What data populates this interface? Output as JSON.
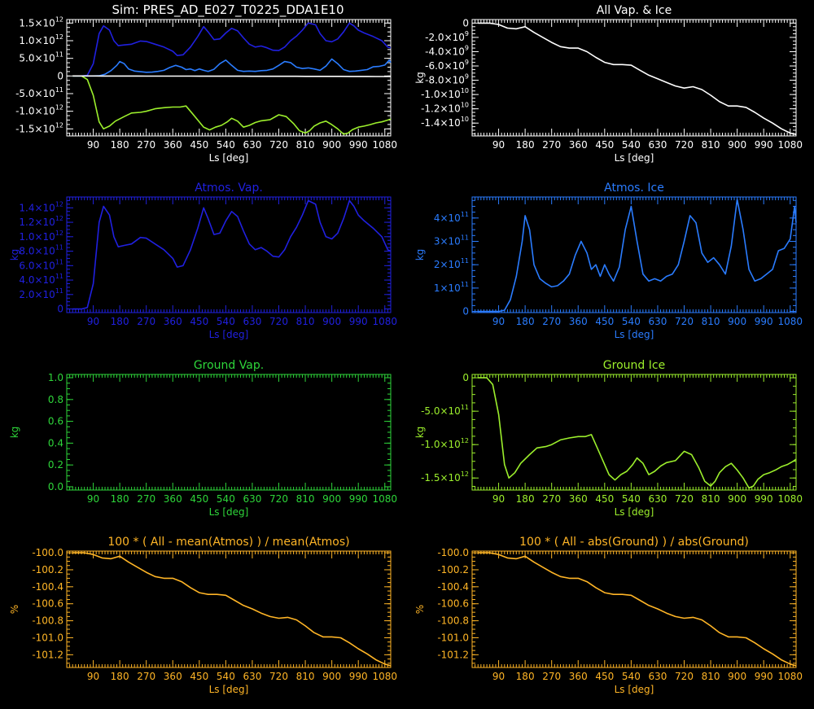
{
  "figure_title": "Sim: PRES_AD_E027_T0225_DDA1E10",
  "chart_data": [
    {
      "id": "combined",
      "type": "line",
      "title": "",
      "xlabel": "Ls [deg]",
      "ylabel": "",
      "axis_color": "#ffffff",
      "xlim": [
        0,
        1100
      ],
      "ylim": [
        -1700000000000.0,
        1600000000000.0
      ],
      "xticks": [
        90,
        180,
        270,
        360,
        450,
        540,
        630,
        720,
        810,
        900,
        990,
        1080
      ],
      "yticks": [
        {
          "v": 1500000000000.0,
          "m": "1.5×10",
          "e": "12"
        },
        {
          "v": 1000000000000.0,
          "m": "1.0×10",
          "e": "12"
        },
        {
          "v": 500000000000.0,
          "m": "5.0×10",
          "e": "11"
        },
        {
          "v": 0,
          "m": "0",
          "e": ""
        },
        {
          "v": -500000000000.0,
          "m": "-5.0×10",
          "e": "11"
        },
        {
          "v": -1000000000000.0,
          "m": "-1.0×10",
          "e": "12"
        },
        {
          "v": -1500000000000.0,
          "m": "-1.5×10",
          "e": "12"
        }
      ],
      "series": [
        {
          "ref": "atmos_vap",
          "color": "#2020e0"
        },
        {
          "ref": "atmos_ice",
          "color": "#2a7cff"
        },
        {
          "ref": "ground_ice",
          "color": "#9cef2c"
        },
        {
          "ref": "all",
          "color": "#ffffff"
        }
      ]
    },
    {
      "id": "all",
      "type": "line",
      "title": "All Vap. & Ice",
      "xlabel": "Ls [deg]",
      "ylabel": "kg",
      "axis_color": "#ffffff",
      "color": "#ffffff",
      "xlim": [
        0,
        1100
      ],
      "ylim": [
        -15800000000.0,
        500000000.0
      ],
      "xticks": [
        90,
        180,
        270,
        360,
        450,
        540,
        630,
        720,
        810,
        900,
        990,
        1080
      ],
      "yticks": [
        {
          "v": 0,
          "m": "0",
          "e": ""
        },
        {
          "v": -2000000000.0,
          "m": "-2.0×10",
          "e": "9"
        },
        {
          "v": -4000000000.0,
          "m": "-4.0×10",
          "e": "9"
        },
        {
          "v": -6000000000.0,
          "m": "-6.0×10",
          "e": "9"
        },
        {
          "v": -8000000000.0,
          "m": "-8.0×10",
          "e": "9"
        },
        {
          "v": -10000000000.0,
          "m": "-1.0×10",
          "e": "10"
        },
        {
          "v": -12000000000.0,
          "m": "-1.2×10",
          "e": "10"
        },
        {
          "v": -14000000000.0,
          "m": "-1.4×10",
          "e": "10"
        }
      ],
      "x": [
        20,
        60,
        90,
        120,
        150,
        180,
        210,
        240,
        270,
        300,
        330,
        360,
        390,
        420,
        450,
        480,
        510,
        540,
        570,
        600,
        630,
        660,
        690,
        720,
        750,
        780,
        810,
        840,
        870,
        900,
        930,
        960,
        990,
        1020,
        1050,
        1080,
        1100
      ],
      "y": [
        0,
        0,
        -200000000.0,
        -700000000.0,
        -800000000.0,
        -500000000.0,
        -1300000000.0,
        -2000000000.0,
        -2700000000.0,
        -3300000000.0,
        -3500000000.0,
        -3500000000.0,
        -4000000000.0,
        -4800000000.0,
        -5500000000.0,
        -5800000000.0,
        -5800000000.0,
        -5900000000.0,
        -6600000000.0,
        -7300000000.0,
        -7800000000.0,
        -8300000000.0,
        -8800000000.0,
        -9100000000.0,
        -8900000000.0,
        -9300000000.0,
        -10100000000.0,
        -11000000000.0,
        -11600000000.0,
        -11600000000.0,
        -11800000000.0,
        -12500000000.0,
        -13300000000.0,
        -14000000000.0,
        -14800000000.0,
        -15400000000.0,
        -15600000000.0
      ]
    },
    {
      "id": "atmos_vap",
      "type": "line",
      "title": "Atmos. Vap.",
      "xlabel": "Ls [deg]",
      "ylabel": "kg",
      "axis_color": "#2020e0",
      "color": "#2020e0",
      "xlim": [
        0,
        1100
      ],
      "ylim": [
        -50000000000.0,
        1550000000000.0
      ],
      "xticks": [
        90,
        180,
        270,
        360,
        450,
        540,
        630,
        720,
        810,
        900,
        990,
        1080
      ],
      "yticks": [
        {
          "v": 0,
          "m": "0",
          "e": ""
        },
        {
          "v": 200000000000.0,
          "m": "2.0×10",
          "e": "11"
        },
        {
          "v": 400000000000.0,
          "m": "4.0×10",
          "e": "11"
        },
        {
          "v": 600000000000.0,
          "m": "6.0×10",
          "e": "11"
        },
        {
          "v": 800000000000.0,
          "m": "8.0×10",
          "e": "11"
        },
        {
          "v": 1000000000000.0,
          "m": "1.0×10",
          "e": "12"
        },
        {
          "v": 1200000000000.0,
          "m": "1.2×10",
          "e": "12"
        },
        {
          "v": 1400000000000.0,
          "m": "1.4×10",
          "e": "12"
        }
      ],
      "x": [
        20,
        50,
        70,
        90,
        110,
        125,
        145,
        160,
        175,
        195,
        220,
        250,
        270,
        300,
        330,
        360,
        375,
        395,
        420,
        445,
        465,
        480,
        500,
        520,
        540,
        560,
        580,
        600,
        620,
        640,
        660,
        680,
        700,
        720,
        740,
        760,
        780,
        800,
        820,
        845,
        860,
        880,
        900,
        920,
        940,
        960,
        975,
        990,
        1010,
        1040,
        1070,
        1090,
        1100
      ],
      "y": [
        0,
        0,
        20000000000.0,
        350000000000.0,
        1200000000000.0,
        1420000000000.0,
        1300000000000.0,
        1000000000000.0,
        860000000000.0,
        880000000000.0,
        900000000000.0,
        990000000000.0,
        980000000000.0,
        900000000000.0,
        820000000000.0,
        700000000000.0,
        580000000000.0,
        600000000000.0,
        820000000000.0,
        1120000000000.0,
        1400000000000.0,
        1250000000000.0,
        1030000000000.0,
        1050000000000.0,
        1220000000000.0,
        1350000000000.0,
        1280000000000.0,
        1080000000000.0,
        900000000000.0,
        820000000000.0,
        850000000000.0,
        800000000000.0,
        730000000000.0,
        720000000000.0,
        820000000000.0,
        1000000000000.0,
        1130000000000.0,
        1300000000000.0,
        1500000000000.0,
        1450000000000.0,
        1200000000000.0,
        1000000000000.0,
        970000000000.0,
        1050000000000.0,
        1250000000000.0,
        1500000000000.0,
        1420000000000.0,
        1300000000000.0,
        1220000000000.0,
        1120000000000.0,
        1000000000000.0,
        820000000000.0,
        800000000000.0
      ]
    },
    {
      "id": "atmos_ice",
      "type": "line",
      "title": "Atmos. Ice",
      "xlabel": "Ls [deg]",
      "ylabel": "kg",
      "axis_color": "#2a7cff",
      "color": "#2a7cff",
      "xlim": [
        0,
        1100
      ],
      "ylim": [
        -5000000000.0,
        490000000000.0
      ],
      "xticks": [
        90,
        180,
        270,
        360,
        450,
        540,
        630,
        720,
        810,
        900,
        990,
        1080
      ],
      "yticks": [
        {
          "v": 0,
          "m": "0",
          "e": ""
        },
        {
          "v": 100000000000.0,
          "m": "1×10",
          "e": "11"
        },
        {
          "v": 200000000000.0,
          "m": "2×10",
          "e": "11"
        },
        {
          "v": 300000000000.0,
          "m": "3×10",
          "e": "11"
        },
        {
          "v": 400000000000.0,
          "m": "4×10",
          "e": "11"
        }
      ],
      "x": [
        20,
        60,
        90,
        110,
        130,
        150,
        170,
        180,
        195,
        210,
        230,
        250,
        270,
        290,
        310,
        330,
        350,
        370,
        390,
        405,
        420,
        435,
        450,
        465,
        480,
        500,
        520,
        540,
        560,
        580,
        600,
        620,
        640,
        660,
        680,
        700,
        720,
        740,
        760,
        780,
        800,
        820,
        840,
        860,
        880,
        900,
        920,
        940,
        960,
        980,
        1000,
        1020,
        1040,
        1060,
        1080,
        1095,
        1100
      ],
      "y": [
        0,
        0,
        0,
        5000000000.0,
        50000000000.0,
        150000000000.0,
        300000000000.0,
        410000000000.0,
        350000000000.0,
        200000000000.0,
        140000000000.0,
        120000000000.0,
        105000000000.0,
        110000000000.0,
        130000000000.0,
        160000000000.0,
        240000000000.0,
        300000000000.0,
        250000000000.0,
        180000000000.0,
        200000000000.0,
        150000000000.0,
        200000000000.0,
        160000000000.0,
        130000000000.0,
        190000000000.0,
        350000000000.0,
        450000000000.0,
        300000000000.0,
        160000000000.0,
        130000000000.0,
        140000000000.0,
        130000000000.0,
        150000000000.0,
        160000000000.0,
        200000000000.0,
        300000000000.0,
        410000000000.0,
        380000000000.0,
        250000000000.0,
        210000000000.0,
        230000000000.0,
        200000000000.0,
        160000000000.0,
        280000000000.0,
        480000000000.0,
        350000000000.0,
        180000000000.0,
        130000000000.0,
        140000000000.0,
        160000000000.0,
        180000000000.0,
        260000000000.0,
        270000000000.0,
        310000000000.0,
        450000000000.0,
        380000000000.0
      ]
    },
    {
      "id": "ground_vap",
      "type": "line",
      "title": "Ground Vap.",
      "xlabel": "Ls [deg]",
      "ylabel": "kg",
      "axis_color": "#2ed63a",
      "color": "#2ed63a",
      "xlim": [
        0,
        1100
      ],
      "ylim": [
        -0.03,
        1.03
      ],
      "xticks": [
        90,
        180,
        270,
        360,
        450,
        540,
        630,
        720,
        810,
        900,
        990,
        1080
      ],
      "yticks": [
        {
          "v": 0,
          "m": "0.0",
          "e": ""
        },
        {
          "v": 0.2,
          "m": "0.2",
          "e": ""
        },
        {
          "v": 0.4,
          "m": "0.4",
          "e": ""
        },
        {
          "v": 0.6,
          "m": "0.6",
          "e": ""
        },
        {
          "v": 0.8,
          "m": "0.8",
          "e": ""
        },
        {
          "v": 1.0,
          "m": "1.0",
          "e": ""
        }
      ],
      "x": [],
      "y": []
    },
    {
      "id": "ground_ice",
      "type": "line",
      "title": "Ground Ice",
      "xlabel": "Ls [deg]",
      "ylabel": "kg",
      "axis_color": "#9cef2c",
      "color": "#9cef2c",
      "xlim": [
        0,
        1100
      ],
      "ylim": [
        -1680000000000.0,
        50000000000.0
      ],
      "xticks": [
        90,
        180,
        270,
        360,
        450,
        540,
        630,
        720,
        810,
        900,
        990,
        1080
      ],
      "yticks": [
        {
          "v": 0,
          "m": "0",
          "e": ""
        },
        {
          "v": -500000000000.0,
          "m": "-5.0×10",
          "e": "11"
        },
        {
          "v": -1000000000000.0,
          "m": "-1.0×10",
          "e": "12"
        },
        {
          "v": -1500000000000.0,
          "m": "-1.5×10",
          "e": "12"
        }
      ],
      "x": [
        20,
        50,
        70,
        90,
        110,
        125,
        145,
        165,
        195,
        220,
        250,
        270,
        300,
        330,
        360,
        385,
        405,
        425,
        445,
        465,
        485,
        505,
        525,
        545,
        560,
        580,
        600,
        620,
        640,
        660,
        690,
        720,
        745,
        770,
        790,
        810,
        825,
        840,
        860,
        880,
        900,
        920,
        940,
        955,
        970,
        990,
        1010,
        1030,
        1050,
        1070,
        1090,
        1100
      ],
      "y": [
        0,
        0,
        -100000000000.0,
        -550000000000.0,
        -1300000000000.0,
        -1500000000000.0,
        -1420000000000.0,
        -1280000000000.0,
        -1150000000000.0,
        -1050000000000.0,
        -1030000000000.0,
        -1000000000000.0,
        -930000000000.0,
        -900000000000.0,
        -880000000000.0,
        -880000000000.0,
        -850000000000.0,
        -1050000000000.0,
        -1250000000000.0,
        -1450000000000.0,
        -1530000000000.0,
        -1450000000000.0,
        -1400000000000.0,
        -1300000000000.0,
        -1200000000000.0,
        -1280000000000.0,
        -1450000000000.0,
        -1400000000000.0,
        -1320000000000.0,
        -1270000000000.0,
        -1240000000000.0,
        -1100000000000.0,
        -1150000000000.0,
        -1350000000000.0,
        -1550000000000.0,
        -1620000000000.0,
        -1550000000000.0,
        -1420000000000.0,
        -1330000000000.0,
        -1280000000000.0,
        -1380000000000.0,
        -1500000000000.0,
        -1650000000000.0,
        -1620000000000.0,
        -1520000000000.0,
        -1450000000000.0,
        -1420000000000.0,
        -1380000000000.0,
        -1330000000000.0,
        -1300000000000.0,
        -1250000000000.0,
        -1220000000000.0
      ]
    },
    {
      "id": "pct_atmos",
      "type": "line",
      "title": "100 * ( All - mean(Atmos) ) / mean(Atmos)",
      "xlabel": "Ls [deg]",
      "ylabel": "%",
      "axis_color": "#ffb526",
      "color": "#ffb526",
      "xlim": [
        0,
        1100
      ],
      "ylim": [
        -101.35,
        -99.98
      ],
      "xticks": [
        90,
        180,
        270,
        360,
        450,
        540,
        630,
        720,
        810,
        900,
        990,
        1080
      ],
      "yticks": [
        {
          "v": -100.0,
          "m": "-100.0",
          "e": ""
        },
        {
          "v": -100.2,
          "m": "-100.2",
          "e": ""
        },
        {
          "v": -100.4,
          "m": "-100.4",
          "e": ""
        },
        {
          "v": -100.6,
          "m": "-100.6",
          "e": ""
        },
        {
          "v": -100.8,
          "m": "-100.8",
          "e": ""
        },
        {
          "v": -101.0,
          "m": "-101.0",
          "e": ""
        },
        {
          "v": -101.2,
          "m": "-101.2",
          "e": ""
        }
      ],
      "x": [
        20,
        60,
        90,
        120,
        150,
        180,
        210,
        240,
        270,
        300,
        330,
        360,
        390,
        420,
        450,
        480,
        510,
        540,
        570,
        600,
        630,
        660,
        690,
        720,
        750,
        780,
        810,
        840,
        870,
        900,
        930,
        960,
        990,
        1020,
        1050,
        1080,
        1100
      ],
      "y": [
        -100.0,
        -100.0,
        -100.02,
        -100.06,
        -100.07,
        -100.04,
        -100.11,
        -100.17,
        -100.23,
        -100.28,
        -100.3,
        -100.3,
        -100.34,
        -100.41,
        -100.47,
        -100.49,
        -100.49,
        -100.5,
        -100.56,
        -100.62,
        -100.66,
        -100.71,
        -100.75,
        -100.77,
        -100.76,
        -100.79,
        -100.86,
        -100.94,
        -100.99,
        -100.99,
        -101.0,
        -101.06,
        -101.13,
        -101.19,
        -101.26,
        -101.31,
        -101.33
      ]
    },
    {
      "id": "pct_ground",
      "type": "line",
      "title": "100 * ( All - abs(Ground) ) / abs(Ground)",
      "xlabel": "Ls [deg]",
      "ylabel": "%",
      "axis_color": "#ffb526",
      "color": "#ffb526",
      "xlim": [
        0,
        1100
      ],
      "ylim": [
        -101.35,
        -99.98
      ],
      "xticks": [
        90,
        180,
        270,
        360,
        450,
        540,
        630,
        720,
        810,
        900,
        990,
        1080
      ],
      "yticks": [
        {
          "v": -100.0,
          "m": "-100.0",
          "e": ""
        },
        {
          "v": -100.2,
          "m": "-100.2",
          "e": ""
        },
        {
          "v": -100.4,
          "m": "-100.4",
          "e": ""
        },
        {
          "v": -100.6,
          "m": "-100.6",
          "e": ""
        },
        {
          "v": -100.8,
          "m": "-100.8",
          "e": ""
        },
        {
          "v": -101.0,
          "m": "-101.0",
          "e": ""
        },
        {
          "v": -101.2,
          "m": "-101.2",
          "e": ""
        }
      ],
      "x": [
        20,
        60,
        90,
        120,
        150,
        180,
        210,
        240,
        270,
        300,
        330,
        360,
        390,
        420,
        450,
        480,
        510,
        540,
        570,
        600,
        630,
        660,
        690,
        720,
        750,
        780,
        810,
        840,
        870,
        900,
        930,
        960,
        990,
        1020,
        1050,
        1080,
        1100
      ],
      "y": [
        -100.0,
        -100.0,
        -100.02,
        -100.06,
        -100.07,
        -100.04,
        -100.11,
        -100.17,
        -100.23,
        -100.28,
        -100.3,
        -100.3,
        -100.34,
        -100.41,
        -100.47,
        -100.49,
        -100.49,
        -100.5,
        -100.56,
        -100.62,
        -100.66,
        -100.71,
        -100.75,
        -100.77,
        -100.76,
        -100.79,
        -100.86,
        -100.94,
        -100.99,
        -100.99,
        -101.0,
        -101.06,
        -101.13,
        -101.19,
        -101.26,
        -101.31,
        -101.33
      ]
    }
  ]
}
